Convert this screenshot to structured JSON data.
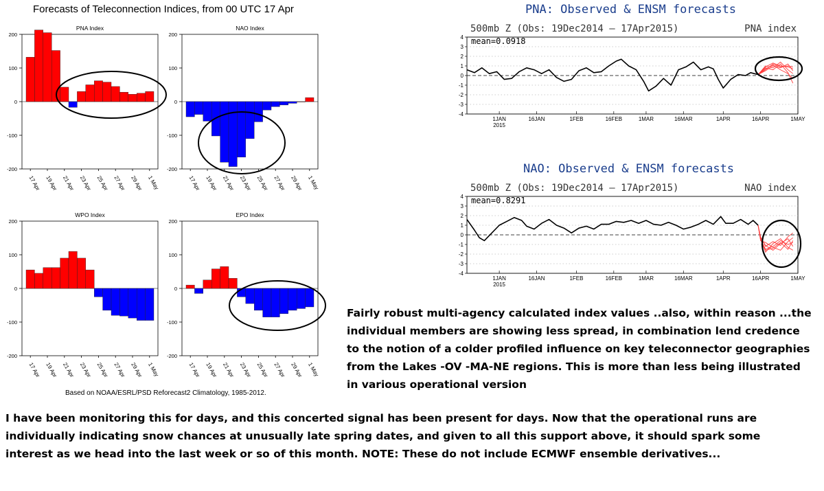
{
  "page_title": "Forecasts of Teleconnection Indices, from 00 UTC 17 Apr",
  "footer_note": "Based on NOAA/ESRL/PSD Reforecast2 Climatology, 1985-2012.",
  "colors": {
    "positive": "#ff0000",
    "negative": "#0000ff",
    "title_blue": "#1a3d8c",
    "member_red": "#ff3b3b"
  },
  "prose": {
    "right_lines": [
      "Fairly robust multi-agency calculated index values ..also, within reason ...the",
      "individual members are showing less spread, in combination lend credence",
      "to the notion of a colder profiled influence on key teleconnector geographies",
      "from the Lakes -OV -MA-NE regions.  This is more than less being illustrated",
      "in various operational version"
    ],
    "bottom_lines": [
      "I have been monitoring this for days, and this concerted signal has been present for days.  Now that the operational runs are",
      "individually indicating snow chances at unusually late spring dates, and given to all this support above, it should spark some",
      "interest as we head into the last week or so of this month. NOTE: These do not include ECMWF ensemble derivatives..."
    ]
  },
  "chart_data": [
    {
      "type": "bar",
      "title": "PNA Index",
      "ylim": [
        -200,
        200
      ],
      "yticks": [
        "200",
        "100",
        "0",
        "-100",
        "-200"
      ],
      "xtick_labels": [
        "17 Apr",
        "19 Apr",
        "21 Apr",
        "23 Apr",
        "25 Apr",
        "27 Apr",
        "29 Apr",
        "1 May"
      ],
      "categories": [
        "17 Apr",
        "18 Apr",
        "19 Apr",
        "20 Apr",
        "21 Apr",
        "22 Apr",
        "23 Apr",
        "24 Apr",
        "25 Apr",
        "26 Apr",
        "27 Apr",
        "28 Apr",
        "29 Apr",
        "30 Apr",
        "1 May"
      ],
      "values": [
        132,
        213,
        205,
        152,
        43,
        -17,
        30,
        50,
        62,
        58,
        45,
        28,
        22,
        25,
        30
      ]
    },
    {
      "type": "bar",
      "title": "NAO Index",
      "ylim": [
        -200,
        200
      ],
      "yticks": [
        "200",
        "100",
        "0",
        "-100",
        "-200"
      ],
      "xtick_labels": [
        "17 Apr",
        "19 Apr",
        "21 Apr",
        "23 Apr",
        "25 Apr",
        "27 Apr",
        "29 Apr",
        "1 May"
      ],
      "categories": [
        "17 Apr",
        "18 Apr",
        "19 Apr",
        "20 Apr",
        "21 Apr",
        "22 Apr",
        "23 Apr",
        "24 Apr",
        "25 Apr",
        "26 Apr",
        "27 Apr",
        "28 Apr",
        "29 Apr",
        "30 Apr",
        "1 May"
      ],
      "values": [
        -45,
        -38,
        -58,
        -102,
        -180,
        -193,
        -165,
        -110,
        -60,
        -25,
        -15,
        -10,
        -5,
        0,
        12
      ]
    },
    {
      "type": "bar",
      "title": "WPO Index",
      "ylim": [
        -200,
        200
      ],
      "yticks": [
        "200",
        "100",
        "0",
        "-100",
        "-200"
      ],
      "xtick_labels": [
        "17 Apr",
        "19 Apr",
        "21 Apr",
        "23 Apr",
        "25 Apr",
        "27 Apr",
        "29 Apr",
        "1 May"
      ],
      "categories": [
        "17 Apr",
        "18 Apr",
        "19 Apr",
        "20 Apr",
        "21 Apr",
        "22 Apr",
        "23 Apr",
        "24 Apr",
        "25 Apr",
        "26 Apr",
        "27 Apr",
        "28 Apr",
        "29 Apr",
        "30 Apr",
        "1 May"
      ],
      "values": [
        55,
        45,
        62,
        62,
        90,
        110,
        90,
        55,
        -25,
        -65,
        -80,
        -82,
        -88,
        -95,
        -95
      ]
    },
    {
      "type": "bar",
      "title": "EPO Index",
      "ylim": [
        -200,
        200
      ],
      "yticks": [
        "200",
        "100",
        "0",
        "-100",
        "-200"
      ],
      "xtick_labels": [
        "17 Apr",
        "19 Apr",
        "21 Apr",
        "23 Apr",
        "25 Apr",
        "27 Apr",
        "29 Apr",
        "1 May"
      ],
      "categories": [
        "17 Apr",
        "18 Apr",
        "19 Apr",
        "20 Apr",
        "21 Apr",
        "22 Apr",
        "23 Apr",
        "24 Apr",
        "25 Apr",
        "26 Apr",
        "27 Apr",
        "28 Apr",
        "29 Apr",
        "30 Apr",
        "1 May"
      ],
      "values": [
        10,
        -15,
        25,
        58,
        65,
        30,
        -25,
        -45,
        -65,
        -85,
        -85,
        -75,
        -65,
        -60,
        -55
      ]
    },
    {
      "type": "line",
      "title": "PNA: Observed & ENSM forecasts",
      "subtitle_left": "500mb Z (Obs: 19Dec2014 – 17Apr2015)",
      "subtitle_right": "PNA index",
      "annotation": "mean=0.0918",
      "ylim": [
        -4,
        4
      ],
      "yticks": [
        "4",
        "3",
        "2",
        "1",
        "0",
        "-1",
        "-2",
        "-3",
        "-4"
      ],
      "xticks": [
        {
          "label": "1JAN",
          "sub": "2015",
          "day": 13
        },
        {
          "label": "16JAN",
          "day": 28
        },
        {
          "label": "1FEB",
          "day": 44
        },
        {
          "label": "16FEB",
          "day": 59
        },
        {
          "label": "1MAR",
          "day": 72
        },
        {
          "label": "16MAR",
          "day": 87
        },
        {
          "label": "1APR",
          "day": 103
        },
        {
          "label": "16APR",
          "day": 118
        },
        {
          "label": "1MAY",
          "day": 133
        }
      ],
      "xlim": [
        0,
        133
      ],
      "observed": [
        [
          0,
          0.6
        ],
        [
          3,
          0.3
        ],
        [
          6,
          0.8
        ],
        [
          9,
          0.2
        ],
        [
          12,
          0.4
        ],
        [
          15,
          -0.4
        ],
        [
          18,
          -0.3
        ],
        [
          21,
          0.4
        ],
        [
          24,
          0.8
        ],
        [
          27,
          0.6
        ],
        [
          30,
          0.2
        ],
        [
          33,
          0.6
        ],
        [
          36,
          -0.2
        ],
        [
          39,
          -0.6
        ],
        [
          42,
          -0.4
        ],
        [
          45,
          0.5
        ],
        [
          48,
          0.8
        ],
        [
          51,
          0.3
        ],
        [
          54,
          0.4
        ],
        [
          57,
          1.0
        ],
        [
          60,
          1.5
        ],
        [
          62,
          1.7
        ],
        [
          65,
          1.0
        ],
        [
          68,
          0.6
        ],
        [
          71,
          -0.6
        ],
        [
          73,
          -1.6
        ],
        [
          76,
          -1.1
        ],
        [
          79,
          -0.3
        ],
        [
          82,
          -1.0
        ],
        [
          85,
          0.6
        ],
        [
          88,
          0.9
        ],
        [
          91,
          1.4
        ],
        [
          94,
          0.6
        ],
        [
          97,
          0.9
        ],
        [
          99,
          0.7
        ],
        [
          101,
          -0.4
        ],
        [
          103,
          -1.3
        ],
        [
          106,
          -0.4
        ],
        [
          109,
          0.1
        ],
        [
          112,
          0.0
        ],
        [
          114,
          0.3
        ],
        [
          117,
          0.1
        ]
      ],
      "members": [
        [
          [
            117,
            0.1
          ],
          [
            120,
            0.9
          ],
          [
            123,
            1.3
          ],
          [
            126,
            1.0
          ],
          [
            129,
            0.9
          ],
          [
            131,
            0.7
          ]
        ],
        [
          [
            117,
            0.1
          ],
          [
            120,
            0.7
          ],
          [
            123,
            1.1
          ],
          [
            126,
            0.6
          ],
          [
            129,
            0.2
          ],
          [
            131,
            -0.3
          ]
        ],
        [
          [
            117,
            0.1
          ],
          [
            120,
            1.0
          ],
          [
            123,
            0.8
          ],
          [
            126,
            1.4
          ],
          [
            129,
            0.6
          ],
          [
            131,
            0.2
          ]
        ],
        [
          [
            117,
            0.1
          ],
          [
            120,
            0.5
          ],
          [
            123,
            1.0
          ],
          [
            126,
            0.8
          ],
          [
            129,
            1.2
          ],
          [
            131,
            0.5
          ]
        ],
        [
          [
            117,
            0.1
          ],
          [
            120,
            0.8
          ],
          [
            123,
            0.6
          ],
          [
            126,
            1.2
          ],
          [
            129,
            0.3
          ],
          [
            131,
            -0.8
          ]
        ],
        [
          [
            117,
            0.1
          ],
          [
            120,
            0.6
          ],
          [
            123,
            1.2
          ],
          [
            126,
            0.9
          ],
          [
            129,
            1.0
          ],
          [
            131,
            0.9
          ]
        ]
      ]
    },
    {
      "type": "line",
      "title": "NAO: Observed & ENSM forecasts",
      "subtitle_left": "500mb Z (Obs: 19Dec2014 – 17Apr2015)",
      "subtitle_right": "NAO index",
      "annotation": "mean=0.8291",
      "ylim": [
        -4,
        4
      ],
      "yticks": [
        "4",
        "3",
        "2",
        "1",
        "0",
        "-1",
        "-2",
        "-3",
        "-4"
      ],
      "xticks": [
        {
          "label": "1JAN",
          "sub": "2015",
          "day": 13
        },
        {
          "label": "16JAN",
          "day": 28
        },
        {
          "label": "1FEB",
          "day": 44
        },
        {
          "label": "16FEB",
          "day": 59
        },
        {
          "label": "1MAR",
          "day": 72
        },
        {
          "label": "16MAR",
          "day": 87
        },
        {
          "label": "1APR",
          "day": 103
        },
        {
          "label": "16APR",
          "day": 118
        },
        {
          "label": "1MAY",
          "day": 133
        }
      ],
      "xlim": [
        0,
        133
      ],
      "observed": [
        [
          0,
          1.6
        ],
        [
          3,
          0.5
        ],
        [
          5,
          -0.3
        ],
        [
          7,
          -0.6
        ],
        [
          10,
          0.2
        ],
        [
          13,
          1.0
        ],
        [
          16,
          1.4
        ],
        [
          19,
          1.8
        ],
        [
          22,
          1.5
        ],
        [
          24,
          0.9
        ],
        [
          27,
          0.6
        ],
        [
          30,
          1.2
        ],
        [
          33,
          1.6
        ],
        [
          36,
          1.0
        ],
        [
          39,
          0.7
        ],
        [
          42,
          0.2
        ],
        [
          45,
          0.7
        ],
        [
          48,
          0.9
        ],
        [
          51,
          0.6
        ],
        [
          54,
          1.1
        ],
        [
          57,
          1.1
        ],
        [
          60,
          1.4
        ],
        [
          63,
          1.3
        ],
        [
          66,
          1.5
        ],
        [
          69,
          1.2
        ],
        [
          72,
          1.5
        ],
        [
          75,
          1.1
        ],
        [
          78,
          1.0
        ],
        [
          81,
          1.3
        ],
        [
          84,
          1.0
        ],
        [
          87,
          0.6
        ],
        [
          90,
          0.8
        ],
        [
          93,
          1.1
        ],
        [
          96,
          1.5
        ],
        [
          99,
          1.1
        ],
        [
          102,
          1.9
        ],
        [
          104,
          1.2
        ],
        [
          107,
          1.2
        ],
        [
          110,
          1.6
        ],
        [
          113,
          1.1
        ],
        [
          115,
          1.5
        ],
        [
          117,
          1.0
        ]
      ],
      "members": [
        [
          [
            117,
            1.0
          ],
          [
            118,
            -0.5
          ],
          [
            120,
            -1.5
          ],
          [
            123,
            -1.2
          ],
          [
            126,
            -0.6
          ],
          [
            129,
            -1.0
          ],
          [
            131,
            -0.8
          ]
        ],
        [
          [
            117,
            1.0
          ],
          [
            118,
            -0.3
          ],
          [
            120,
            -1.1
          ],
          [
            123,
            -1.6
          ],
          [
            126,
            -0.9
          ],
          [
            129,
            -0.4
          ],
          [
            131,
            -1.2
          ]
        ],
        [
          [
            117,
            1.0
          ],
          [
            118,
            -0.6
          ],
          [
            120,
            -0.8
          ],
          [
            123,
            -1.3
          ],
          [
            126,
            -1.6
          ],
          [
            129,
            -0.7
          ],
          [
            131,
            -0.3
          ]
        ],
        [
          [
            117,
            1.0
          ],
          [
            118,
            -0.4
          ],
          [
            120,
            -1.8
          ],
          [
            123,
            -0.9
          ],
          [
            126,
            -0.4
          ],
          [
            129,
            -1.3
          ],
          [
            131,
            -1.6
          ]
        ],
        [
          [
            117,
            1.0
          ],
          [
            118,
            -0.2
          ],
          [
            120,
            -1.2
          ],
          [
            123,
            -0.7
          ],
          [
            126,
            -1.1
          ],
          [
            129,
            -0.2
          ],
          [
            131,
            0.2
          ]
        ],
        [
          [
            117,
            1.0
          ],
          [
            118,
            -0.5
          ],
          [
            120,
            -1.6
          ],
          [
            123,
            -1.4
          ],
          [
            126,
            -0.8
          ],
          [
            129,
            -1.5
          ],
          [
            131,
            -0.6
          ]
        ]
      ]
    }
  ]
}
